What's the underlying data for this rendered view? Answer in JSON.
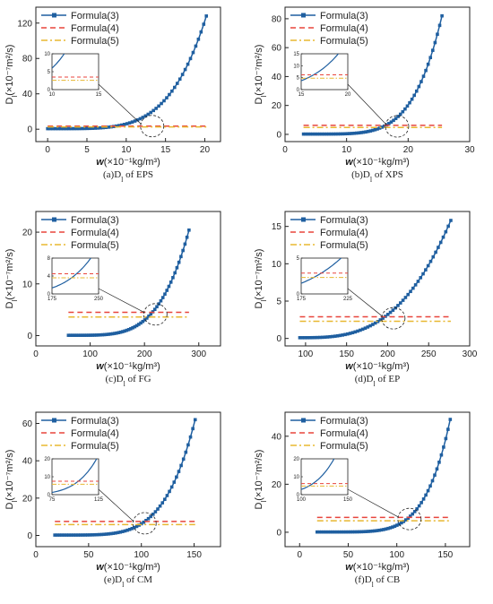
{
  "colors": {
    "formula3": "#1f5fa0",
    "formula4": "#e8453c",
    "formula5": "#e8b830"
  },
  "chart_data": [
    {
      "type": "line",
      "caption": "(a)D",
      "caption_sub": "l",
      "caption_tail": " of EPS",
      "xlabel": "w",
      "xlabel_unit": "(×10⁻¹kg/m³)",
      "ylabel": "D",
      "ylabel_sub": "l",
      "ylabel_unit": "(×10⁻⁷m²/s)",
      "xlim": [
        -1.5,
        22
      ],
      "ylim": [
        -14,
        138
      ],
      "xticks": [
        0,
        5,
        10,
        15,
        20
      ],
      "yticks": [
        0,
        40,
        80,
        120
      ],
      "series": [
        {
          "name": "Formula(3)",
          "kind": "markers",
          "x_range": [
            0,
            20.2
          ],
          "y0": 0.6,
          "y1": 128,
          "exponent": 4.5
        },
        {
          "name": "Formula(4)",
          "kind": "dashed",
          "x_range": [
            0,
            20.2
          ],
          "value": 3.5
        },
        {
          "name": "Formula(5)",
          "kind": "dashdot",
          "x_range": [
            0,
            20.2
          ],
          "value": 2.6
        }
      ],
      "inset": {
        "xlim": [
          10,
          15
        ],
        "ylim": [
          0,
          10
        ],
        "xticks": [
          10,
          15
        ],
        "yticks": [
          0,
          5,
          10
        ],
        "zoom_center": [
          13.3,
          3.5
        ]
      }
    },
    {
      "type": "line",
      "caption": "(b)D",
      "caption_sub": "l",
      "caption_tail": " of XPS",
      "xlabel": "w",
      "xlabel_unit": "(×10⁻¹kg/m³)",
      "ylabel": "D",
      "ylabel_sub": "l",
      "ylabel_unit": "(×10⁻⁷m²/s)",
      "xlim": [
        0,
        30
      ],
      "ylim": [
        -5,
        88
      ],
      "xticks": [
        0,
        10,
        20,
        30
      ],
      "yticks": [
        0,
        20,
        40,
        60,
        80
      ],
      "series": [
        {
          "name": "Formula(3)",
          "kind": "markers",
          "x_range": [
            3,
            25.5
          ],
          "y0": 0.2,
          "y1": 82,
          "exponent": 5.0
        },
        {
          "name": "Formula(4)",
          "kind": "dashed",
          "x_range": [
            3,
            25.5
          ],
          "value": 6.2
        },
        {
          "name": "Formula(5)",
          "kind": "dashdot",
          "x_range": [
            3,
            25.5
          ],
          "value": 4.8
        }
      ],
      "inset": {
        "xlim": [
          15,
          20
        ],
        "ylim": [
          0,
          15
        ],
        "xticks": [
          15,
          20
        ],
        "yticks": [
          0,
          5,
          10,
          15
        ],
        "zoom_center": [
          18.2,
          5.5
        ]
      }
    },
    {
      "type": "line",
      "caption": "(c)D",
      "caption_sub": "l",
      "caption_tail": " of FG",
      "xlabel": "w",
      "xlabel_unit": "(×10⁻¹kg/m³)",
      "ylabel": "D",
      "ylabel_sub": "l",
      "ylabel_unit": "(×10⁻⁷m²/s)",
      "xlim": [
        0,
        340
      ],
      "ylim": [
        -2,
        24
      ],
      "xticks": [
        0,
        100,
        200,
        300
      ],
      "yticks": [
        0,
        10,
        20
      ],
      "series": [
        {
          "name": "Formula(3)",
          "kind": "markers",
          "x_range": [
            60,
            282
          ],
          "y0": 0.05,
          "y1": 20.4,
          "exponent": 4.2
        },
        {
          "name": "Formula(4)",
          "kind": "dashed",
          "x_range": [
            60,
            282
          ],
          "value": 4.5
        },
        {
          "name": "Formula(5)",
          "kind": "dashdot",
          "x_range": [
            60,
            282
          ],
          "value": 3.6
        }
      ],
      "inset": {
        "xlim": [
          175,
          250
        ],
        "ylim": [
          0,
          8
        ],
        "xticks": [
          175,
          250
        ],
        "yticks": [
          0,
          4,
          8
        ],
        "zoom_center": [
          220,
          4.1
        ]
      }
    },
    {
      "type": "line",
      "caption": "(d)D",
      "caption_sub": "l",
      "caption_tail": " of EP",
      "xlabel": "w",
      "xlabel_unit": "(×10⁻¹kg/m³)",
      "ylabel": "D",
      "ylabel_sub": "l",
      "ylabel_unit": "(×10⁻⁷m²/s)",
      "xlim": [
        75,
        300
      ],
      "ylim": [
        -1,
        17
      ],
      "xticks": [
        100,
        150,
        200,
        250,
        300
      ],
      "yticks": [
        0,
        5,
        10,
        15
      ],
      "series": [
        {
          "name": "Formula(3)",
          "kind": "markers",
          "x_range": [
            93,
            277
          ],
          "y0": 0.1,
          "y1": 15.8,
          "exponent": 3.0
        },
        {
          "name": "Formula(4)",
          "kind": "dashed",
          "x_range": [
            93,
            277
          ],
          "value": 2.9
        },
        {
          "name": "Formula(5)",
          "kind": "dashdot",
          "x_range": [
            93,
            277
          ],
          "value": 2.3
        }
      ],
      "inset": {
        "xlim": [
          175,
          225
        ],
        "ylim": [
          0,
          5
        ],
        "xticks": [
          175,
          225
        ],
        "yticks": [
          0,
          5
        ],
        "zoom_center": [
          207,
          2.7
        ]
      }
    },
    {
      "type": "line",
      "caption": "(e)D",
      "caption_sub": "l",
      "caption_tail": " of CM",
      "xlabel": "w",
      "xlabel_unit": "(×10⁻¹kg/m³)",
      "ylabel": "D",
      "ylabel_sub": "l",
      "ylabel_unit": "(×10⁻⁷m²/s)",
      "xlim": [
        0,
        175
      ],
      "ylim": [
        -6,
        66
      ],
      "xticks": [
        0,
        50,
        100,
        150
      ],
      "yticks": [
        0,
        20,
        40,
        60
      ],
      "series": [
        {
          "name": "Formula(3)",
          "kind": "markers",
          "x_range": [
            18,
            151
          ],
          "y0": 0.2,
          "y1": 62,
          "exponent": 4.8
        },
        {
          "name": "Formula(4)",
          "kind": "dashed",
          "x_range": [
            18,
            151
          ],
          "value": 7.5
        },
        {
          "name": "Formula(5)",
          "kind": "dashdot",
          "x_range": [
            18,
            151
          ],
          "value": 5.8
        }
      ],
      "inset": {
        "xlim": [
          75,
          125
        ],
        "ylim": [
          0,
          20
        ],
        "xticks": [
          75,
          125
        ],
        "yticks": [
          0,
          10,
          20
        ],
        "zoom_center": [
          103,
          6.5
        ]
      }
    },
    {
      "type": "line",
      "caption": "(f)D",
      "caption_sub": "l",
      "caption_tail": " of CB",
      "xlabel": "w",
      "xlabel_unit": "(×10⁻¹kg/m³)",
      "ylabel": "D",
      "ylabel_sub": "l",
      "ylabel_unit": "(×10⁻⁷m²/s)",
      "xlim": [
        -15,
        175
      ],
      "ylim": [
        -6,
        50
      ],
      "xticks": [
        0,
        50,
        100,
        150
      ],
      "yticks": [
        0,
        20,
        40
      ],
      "series": [
        {
          "name": "Formula(3)",
          "kind": "markers",
          "x_range": [
            18,
            155
          ],
          "y0": 0.1,
          "y1": 47,
          "exponent": 5.5
        },
        {
          "name": "Formula(4)",
          "kind": "dashed",
          "x_range": [
            18,
            155
          ],
          "value": 6.2
        },
        {
          "name": "Formula(5)",
          "kind": "dashdot",
          "x_range": [
            18,
            155
          ],
          "value": 4.8
        }
      ],
      "inset": {
        "xlim": [
          100,
          150
        ],
        "ylim": [
          0,
          20
        ],
        "xticks": [
          100,
          150
        ],
        "yticks": [
          0,
          10,
          20
        ],
        "zoom_center": [
          113,
          5.5
        ]
      }
    }
  ]
}
